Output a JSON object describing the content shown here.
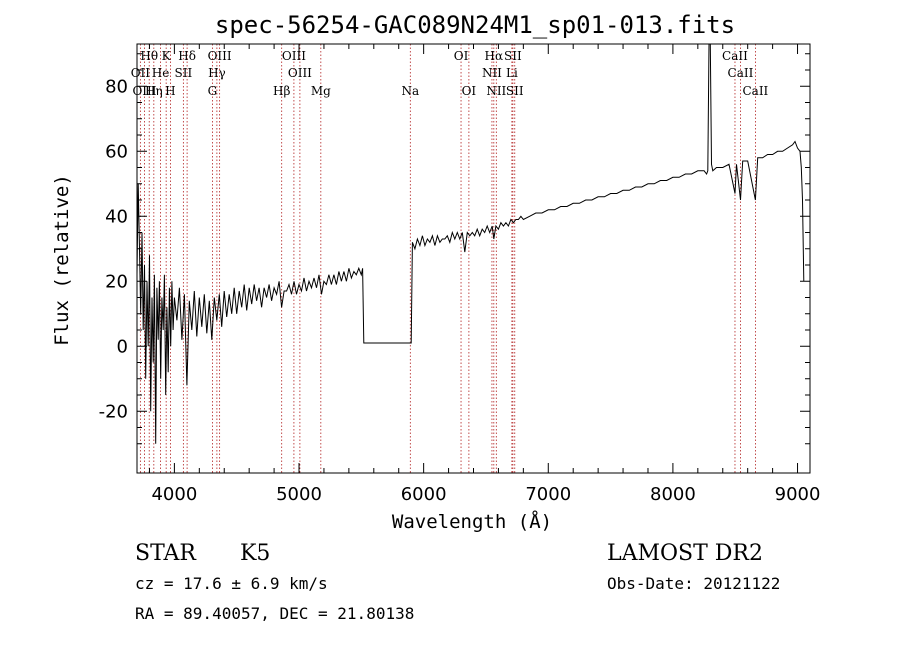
{
  "chart_data": {
    "type": "line",
    "title": "spec-56254-GAC089N24M1_sp01-013.fits",
    "xlabel": "Wavelength (Å)",
    "ylabel": "Flux (relative)",
    "xlim": [
      3700,
      9100
    ],
    "ylim": [
      -39,
      93
    ],
    "xticks": [
      "4000",
      "5000",
      "6000",
      "7000",
      "8000",
      "9000"
    ],
    "yticks": [
      "-20",
      "0",
      "20",
      "40",
      "60",
      "80"
    ],
    "grid": false,
    "series": [
      {
        "points": [
          [
            3700,
            22
          ],
          [
            3710,
            50
          ],
          [
            3720,
            30
          ],
          [
            3730,
            10
          ],
          [
            3740,
            35
          ],
          [
            3750,
            5
          ],
          [
            3760,
            25
          ],
          [
            3770,
            -10
          ],
          [
            3780,
            20
          ],
          [
            3790,
            0
          ],
          [
            3800,
            28
          ],
          [
            3810,
            -20
          ],
          [
            3820,
            15
          ],
          [
            3830,
            -5
          ],
          [
            3840,
            22
          ],
          [
            3850,
            -30
          ],
          [
            3860,
            18
          ],
          [
            3870,
            2
          ],
          [
            3880,
            20
          ],
          [
            3890,
            -10
          ],
          [
            3900,
            15
          ],
          [
            3910,
            5
          ],
          [
            3920,
            22
          ],
          [
            3930,
            -15
          ],
          [
            3940,
            12
          ],
          [
            3950,
            -8
          ],
          [
            3960,
            18
          ],
          [
            3970,
            0
          ],
          [
            3980,
            20
          ],
          [
            3990,
            5
          ],
          [
            4000,
            15
          ],
          [
            4020,
            8
          ],
          [
            4040,
            18
          ],
          [
            4060,
            2
          ],
          [
            4080,
            16
          ],
          [
            4100,
            -12
          ],
          [
            4120,
            14
          ],
          [
            4140,
            5
          ],
          [
            4160,
            17
          ],
          [
            4180,
            3
          ],
          [
            4200,
            15
          ],
          [
            4220,
            6
          ],
          [
            4240,
            16
          ],
          [
            4260,
            4
          ],
          [
            4280,
            14
          ],
          [
            4300,
            2
          ],
          [
            4320,
            15
          ],
          [
            4340,
            8
          ],
          [
            4360,
            16
          ],
          [
            4380,
            6
          ],
          [
            4400,
            17
          ],
          [
            4420,
            9
          ],
          [
            4440,
            16
          ],
          [
            4460,
            10
          ],
          [
            4480,
            18
          ],
          [
            4500,
            10
          ],
          [
            4520,
            17
          ],
          [
            4540,
            12
          ],
          [
            4560,
            19
          ],
          [
            4580,
            11
          ],
          [
            4600,
            18
          ],
          [
            4620,
            13
          ],
          [
            4640,
            19
          ],
          [
            4660,
            14
          ],
          [
            4680,
            18
          ],
          [
            4700,
            12
          ],
          [
            4720,
            18
          ],
          [
            4740,
            15
          ],
          [
            4760,
            19
          ],
          [
            4780,
            14
          ],
          [
            4800,
            18
          ],
          [
            4820,
            16
          ],
          [
            4840,
            20
          ],
          [
            4860,
            12
          ],
          [
            4880,
            17
          ],
          [
            4900,
            17
          ],
          [
            4920,
            19
          ],
          [
            4940,
            16
          ],
          [
            4960,
            20
          ],
          [
            4980,
            16
          ],
          [
            5000,
            19
          ],
          [
            5020,
            17
          ],
          [
            5040,
            21
          ],
          [
            5060,
            17
          ],
          [
            5080,
            20
          ],
          [
            5100,
            18
          ],
          [
            5120,
            21
          ],
          [
            5140,
            18
          ],
          [
            5160,
            22
          ],
          [
            5180,
            16
          ],
          [
            5200,
            20
          ],
          [
            5220,
            19
          ],
          [
            5240,
            22
          ],
          [
            5260,
            19
          ],
          [
            5280,
            22
          ],
          [
            5300,
            19
          ],
          [
            5320,
            23
          ],
          [
            5340,
            20
          ],
          [
            5360,
            23
          ],
          [
            5380,
            20
          ],
          [
            5400,
            24
          ],
          [
            5420,
            21
          ],
          [
            5440,
            23
          ],
          [
            5460,
            22
          ],
          [
            5480,
            24
          ],
          [
            5500,
            22
          ],
          [
            5510,
            24
          ],
          [
            5520,
            1
          ],
          [
            5890,
            1
          ],
          [
            5900,
            1
          ],
          [
            5910,
            32
          ],
          [
            5930,
            30
          ],
          [
            5950,
            33
          ],
          [
            5970,
            31
          ],
          [
            5990,
            34
          ],
          [
            6010,
            31
          ],
          [
            6030,
            33
          ],
          [
            6050,
            32
          ],
          [
            6070,
            34
          ],
          [
            6090,
            31
          ],
          [
            6110,
            34
          ],
          [
            6130,
            32
          ],
          [
            6150,
            33
          ],
          [
            6170,
            33
          ],
          [
            6190,
            34
          ],
          [
            6210,
            32
          ],
          [
            6230,
            35
          ],
          [
            6250,
            33
          ],
          [
            6270,
            35
          ],
          [
            6290,
            33
          ],
          [
            6310,
            35
          ],
          [
            6330,
            29
          ],
          [
            6350,
            35
          ],
          [
            6370,
            34
          ],
          [
            6390,
            35
          ],
          [
            6410,
            34
          ],
          [
            6430,
            36
          ],
          [
            6450,
            34
          ],
          [
            6470,
            36
          ],
          [
            6490,
            35
          ],
          [
            6510,
            37
          ],
          [
            6530,
            35
          ],
          [
            6550,
            37
          ],
          [
            6563,
            33
          ],
          [
            6580,
            37
          ],
          [
            6600,
            36
          ],
          [
            6620,
            38
          ],
          [
            6640,
            37
          ],
          [
            6660,
            38
          ],
          [
            6680,
            37
          ],
          [
            6700,
            39
          ],
          [
            6720,
            38
          ],
          [
            6740,
            39
          ],
          [
            6760,
            39
          ],
          [
            6780,
            40
          ],
          [
            6800,
            39
          ],
          [
            6850,
            40
          ],
          [
            6900,
            41
          ],
          [
            6950,
            41
          ],
          [
            7000,
            42
          ],
          [
            7050,
            42
          ],
          [
            7100,
            43
          ],
          [
            7150,
            43
          ],
          [
            7200,
            44
          ],
          [
            7250,
            44
          ],
          [
            7300,
            45
          ],
          [
            7350,
            45
          ],
          [
            7400,
            46
          ],
          [
            7450,
            46
          ],
          [
            7500,
            47
          ],
          [
            7550,
            47
          ],
          [
            7600,
            48
          ],
          [
            7650,
            48
          ],
          [
            7700,
            49
          ],
          [
            7750,
            49
          ],
          [
            7800,
            50
          ],
          [
            7850,
            50
          ],
          [
            7900,
            51
          ],
          [
            7950,
            51
          ],
          [
            8000,
            52
          ],
          [
            8050,
            52
          ],
          [
            8100,
            53
          ],
          [
            8150,
            53
          ],
          [
            8200,
            54
          ],
          [
            8250,
            54
          ],
          [
            8270,
            53
          ],
          [
            8280,
            54
          ],
          [
            8290,
            93
          ],
          [
            8300,
            93
          ],
          [
            8310,
            56
          ],
          [
            8320,
            54
          ],
          [
            8350,
            55
          ],
          [
            8400,
            55
          ],
          [
            8450,
            56
          ],
          [
            8498,
            47
          ],
          [
            8510,
            56
          ],
          [
            8542,
            45
          ],
          [
            8560,
            57
          ],
          [
            8600,
            57
          ],
          [
            8662,
            45
          ],
          [
            8680,
            58
          ],
          [
            8720,
            58
          ],
          [
            8760,
            59
          ],
          [
            8800,
            59
          ],
          [
            8840,
            60
          ],
          [
            8880,
            60
          ],
          [
            8920,
            61
          ],
          [
            8960,
            62
          ],
          [
            8980,
            63
          ],
          [
            9000,
            61
          ],
          [
            9020,
            60
          ],
          [
            9030,
            55
          ],
          [
            9040,
            45
          ],
          [
            9050,
            20
          ]
        ]
      }
    ],
    "line_groups": [
      {
        "row": 0,
        "items": [
          {
            "label": "Hθ",
            "wl": 3798
          },
          {
            "label": "K",
            "wl": 3934
          },
          {
            "label": "Hδ",
            "wl": 4102
          },
          {
            "label": "OIII",
            "wl": 4363
          },
          {
            "label": "OIII",
            "wl": 4959
          },
          {
            "label": "OI",
            "wl": 6300
          },
          {
            "label": "Hα",
            "wl": 6563
          },
          {
            "label": "SII",
            "wl": 6716
          },
          {
            "label": "CaII",
            "wl": 8498
          }
        ]
      },
      {
        "row": 1,
        "items": [
          {
            "label": "OII",
            "wl": 3727
          },
          {
            "label": "He",
            "wl": 3889
          },
          {
            "label": "SII",
            "wl": 4072
          },
          {
            "label": "Hγ",
            "wl": 4341
          },
          {
            "label": "OIII",
            "wl": 5007
          },
          {
            "label": "NII",
            "wl": 6548
          },
          {
            "label": "Li",
            "wl": 6708
          },
          {
            "label": "CaII",
            "wl": 8542
          }
        ]
      },
      {
        "row": 2,
        "items": [
          {
            "label": "OIII",
            "wl": 3760
          },
          {
            "label": "Hη",
            "wl": 3835
          },
          {
            "label": "H",
            "wl": 3968
          },
          {
            "label": "G",
            "wl": 4305
          },
          {
            "label": "Hβ",
            "wl": 4861
          },
          {
            "label": "Mg",
            "wl": 5175
          },
          {
            "label": "Na",
            "wl": 5893
          },
          {
            "label": "OI",
            "wl": 6363
          },
          {
            "label": "NII",
            "wl": 6583
          },
          {
            "label": "SII",
            "wl": 6731
          },
          {
            "label": "CaII",
            "wl": 8662
          }
        ]
      }
    ]
  },
  "info": {
    "class_label": "STAR",
    "subclass": "K5",
    "survey": "LAMOST DR2",
    "cz": "cz = 17.6 ± 6.9 km/s",
    "obs_date": "Obs-Date: 20121122",
    "coords": "RA =  89.40057, DEC =  21.80138"
  },
  "colors": {
    "spectrum": "#000000",
    "line_marker": "#b22222",
    "axes": "#000000"
  }
}
